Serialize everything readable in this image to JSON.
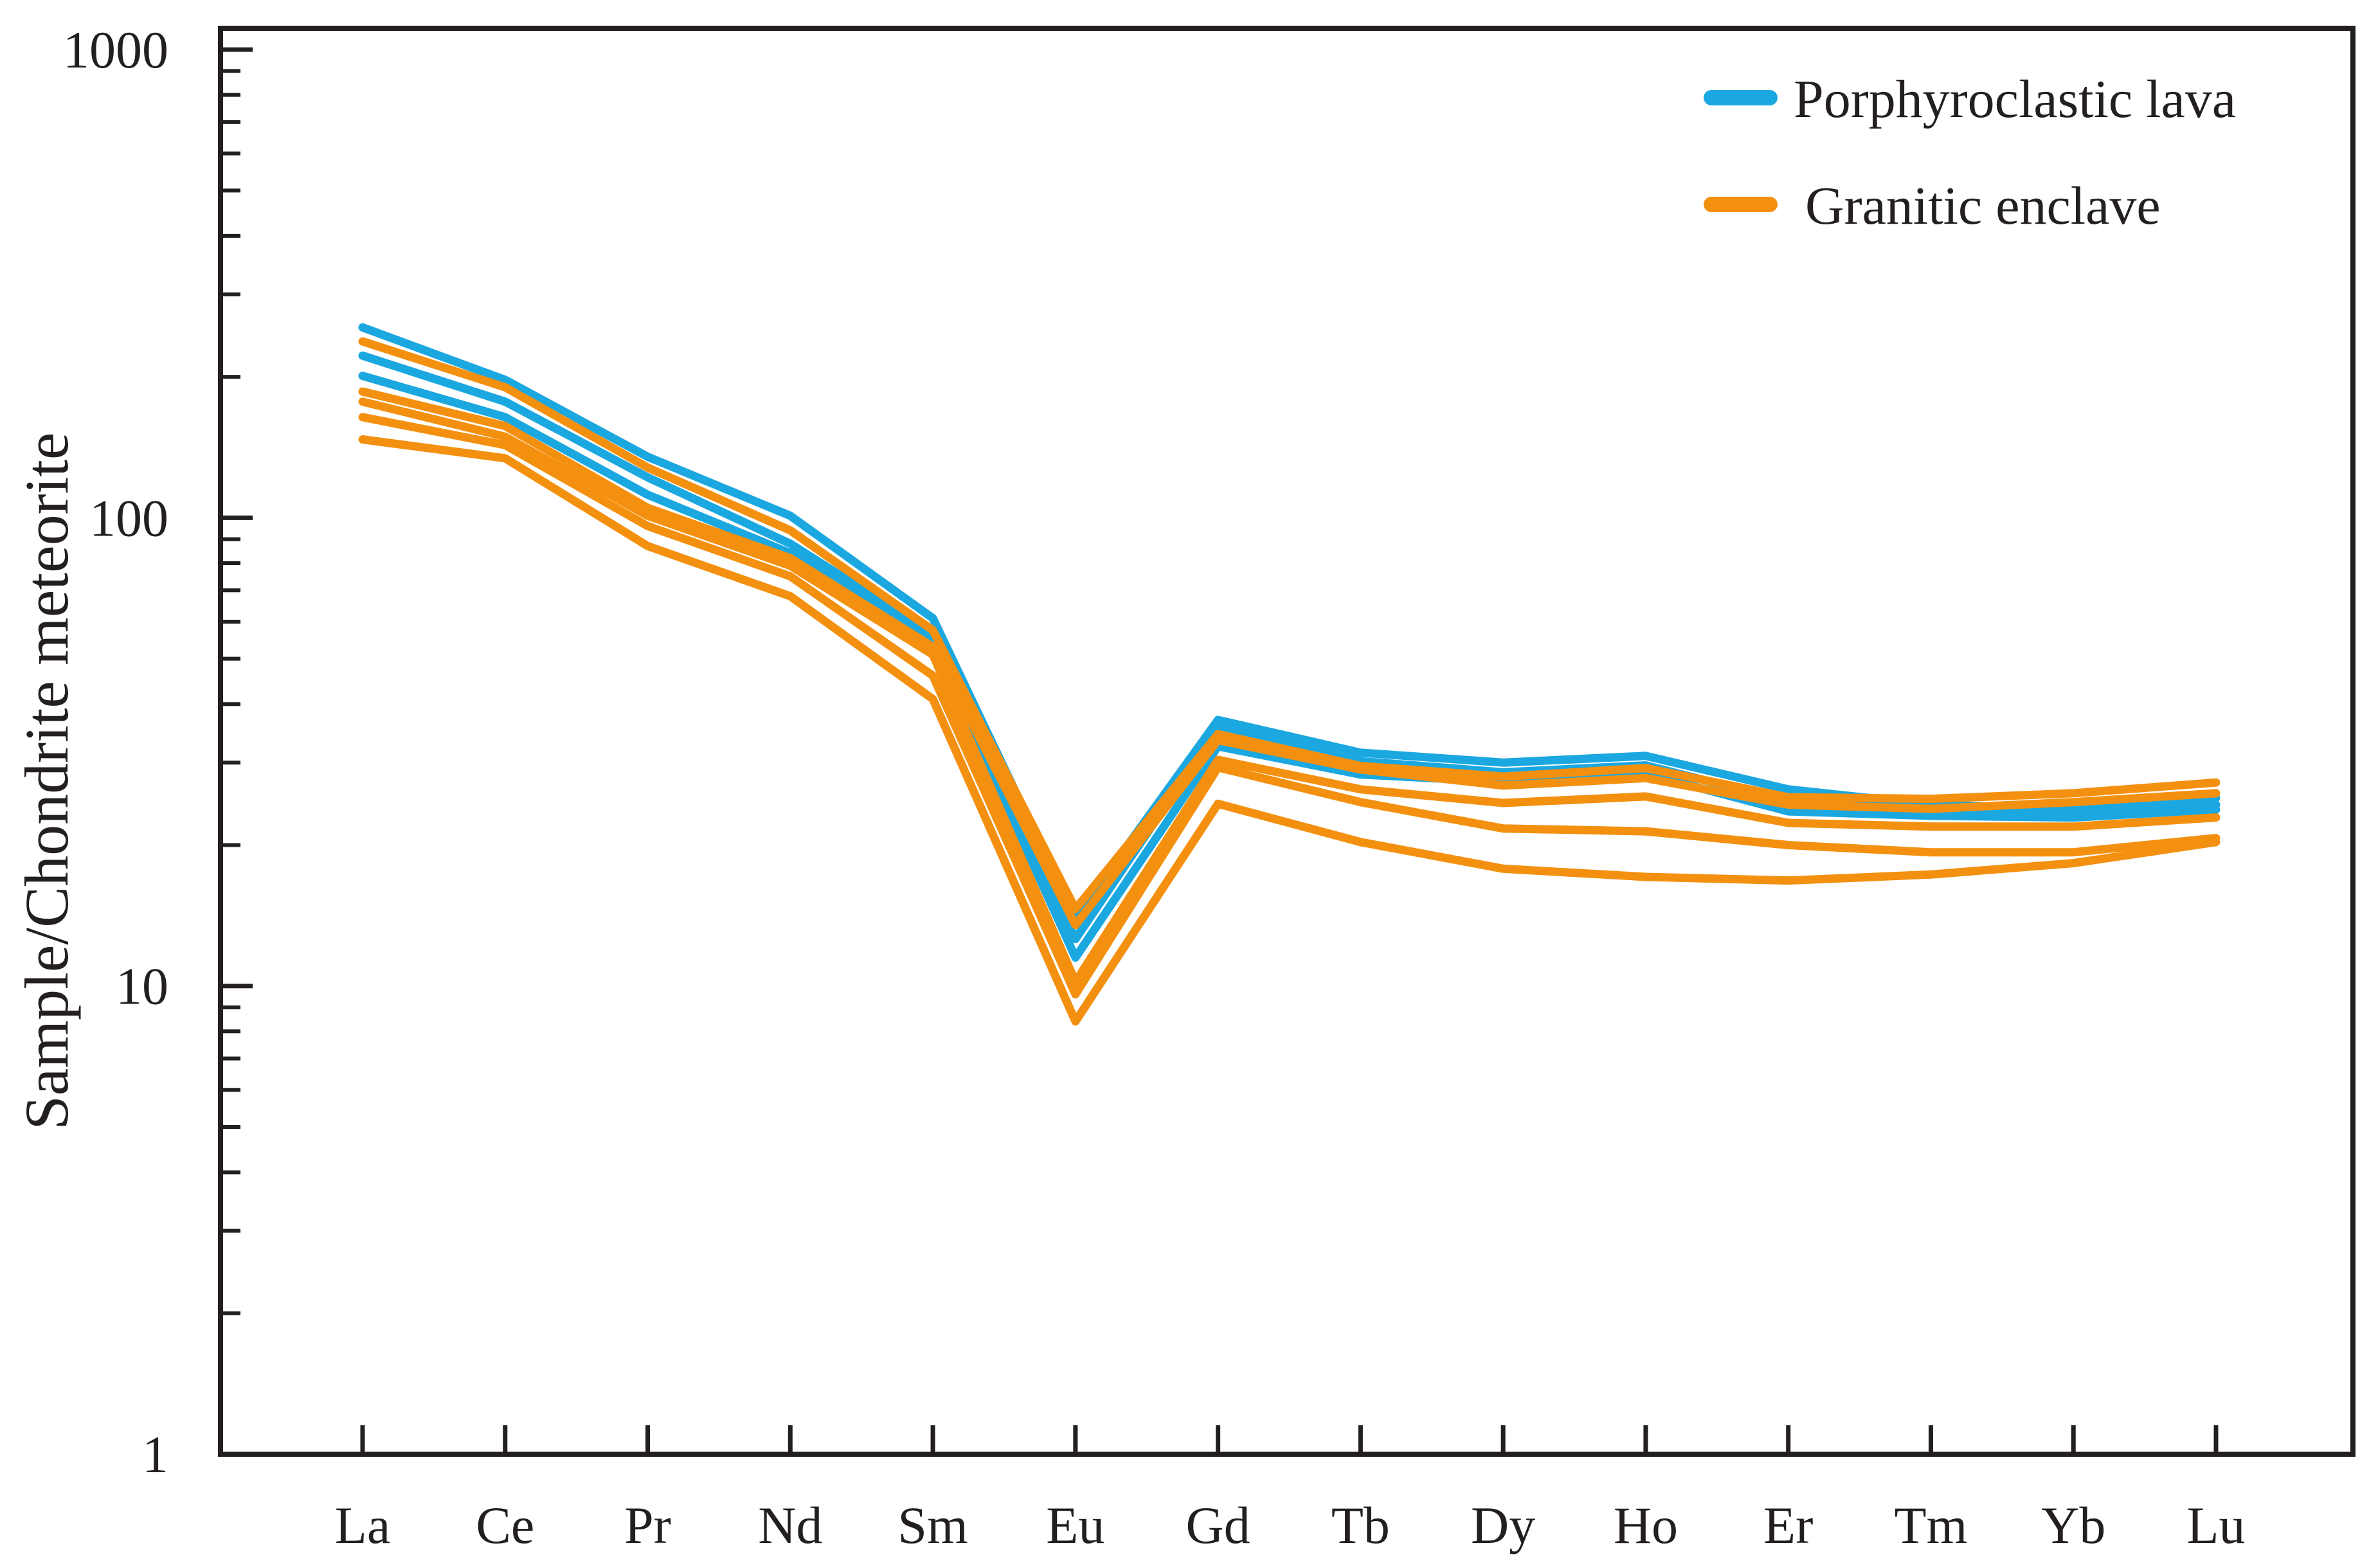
{
  "figure": {
    "background": "#ffffff",
    "axis_color": "#231F20",
    "text_color": "#231F20"
  },
  "legend": {
    "position": "top-right",
    "items": [
      {
        "label": "Porphyroclastic lava",
        "color": "#1BA7E0"
      },
      {
        "label": "Granitic enclave",
        "color": "#F4900F"
      }
    ]
  },
  "chart_data": {
    "type": "line",
    "title": "",
    "xlabel": "",
    "ylabel": "Sample/Chondrite meteorite",
    "y_scale": "log",
    "ylim": [
      1,
      1120
    ],
    "yticks": [
      1,
      10,
      100,
      1000
    ],
    "ytick_labels": [
      "1",
      "10",
      "100",
      "1000"
    ],
    "grid": false,
    "legend_position": "top-right",
    "x_categories": [
      "La",
      "Ce",
      "Pr",
      "Nd",
      "Sm",
      "Eu",
      "Gd",
      "Tb",
      "Dy",
      "Ho",
      "Er",
      "Tm",
      "Yb",
      "Lu"
    ],
    "series": [
      {
        "name": "Porphyroclastic lava 1",
        "group": "Porphyroclastic lava",
        "color": "#1BA7E0",
        "values": [
          255,
          197,
          135,
          101,
          61,
          14.0,
          37.0,
          31.5,
          30.0,
          31.0,
          26.3,
          24.4,
          23.9,
          25.2
        ]
      },
      {
        "name": "Porphyroclastic lava 2",
        "group": "Porphyroclastic lava",
        "color": "#1BA7E0",
        "values": [
          222,
          177,
          122,
          88,
          56.5,
          12.6,
          35.5,
          30.2,
          28.6,
          29.6,
          24.8,
          23.8,
          23.4,
          24.4
        ]
      },
      {
        "name": "Porphyroclastic lava 3",
        "group": "Porphyroclastic lava",
        "color": "#1BA7E0",
        "values": [
          201,
          164,
          112,
          84,
          54,
          11.5,
          32.5,
          28.3,
          27.3,
          28.4,
          23.6,
          23.1,
          22.9,
          23.8
        ]
      },
      {
        "name": "Granitic enclave 1",
        "group": "Granitic enclave",
        "color": "#F4900F",
        "values": [
          238,
          190,
          128,
          94,
          57.5,
          14.6,
          34.5,
          29.5,
          28.0,
          29.2,
          25.3,
          25.1,
          25.8,
          27.2
        ]
      },
      {
        "name": "Granitic enclave 2",
        "group": "Granitic enclave",
        "color": "#F4900F",
        "values": [
          186,
          157,
          105,
          82,
          53,
          13.5,
          33.5,
          29.0,
          26.8,
          27.8,
          24.4,
          23.9,
          24.7,
          25.8
        ]
      },
      {
        "name": "Granitic enclave 3",
        "group": "Granitic enclave",
        "color": "#F4900F",
        "values": [
          177,
          149,
          101,
          79,
          51,
          10.2,
          30.4,
          26.3,
          24.6,
          25.4,
          22.3,
          21.9,
          21.9,
          22.9
        ]
      },
      {
        "name": "Granitic enclave 4",
        "group": "Granitic enclave",
        "color": "#F4900F",
        "values": [
          164,
          143,
          96,
          75,
          46,
          9.6,
          29.3,
          24.7,
          21.7,
          21.4,
          20.0,
          19.3,
          19.3,
          20.7
        ]
      },
      {
        "name": "Granitic enclave 5",
        "group": "Granitic enclave",
        "color": "#F4900F",
        "values": [
          147,
          134,
          87,
          68,
          41,
          8.4,
          24.5,
          20.3,
          17.8,
          17.1,
          16.8,
          17.3,
          18.3,
          20.3
        ]
      }
    ]
  }
}
